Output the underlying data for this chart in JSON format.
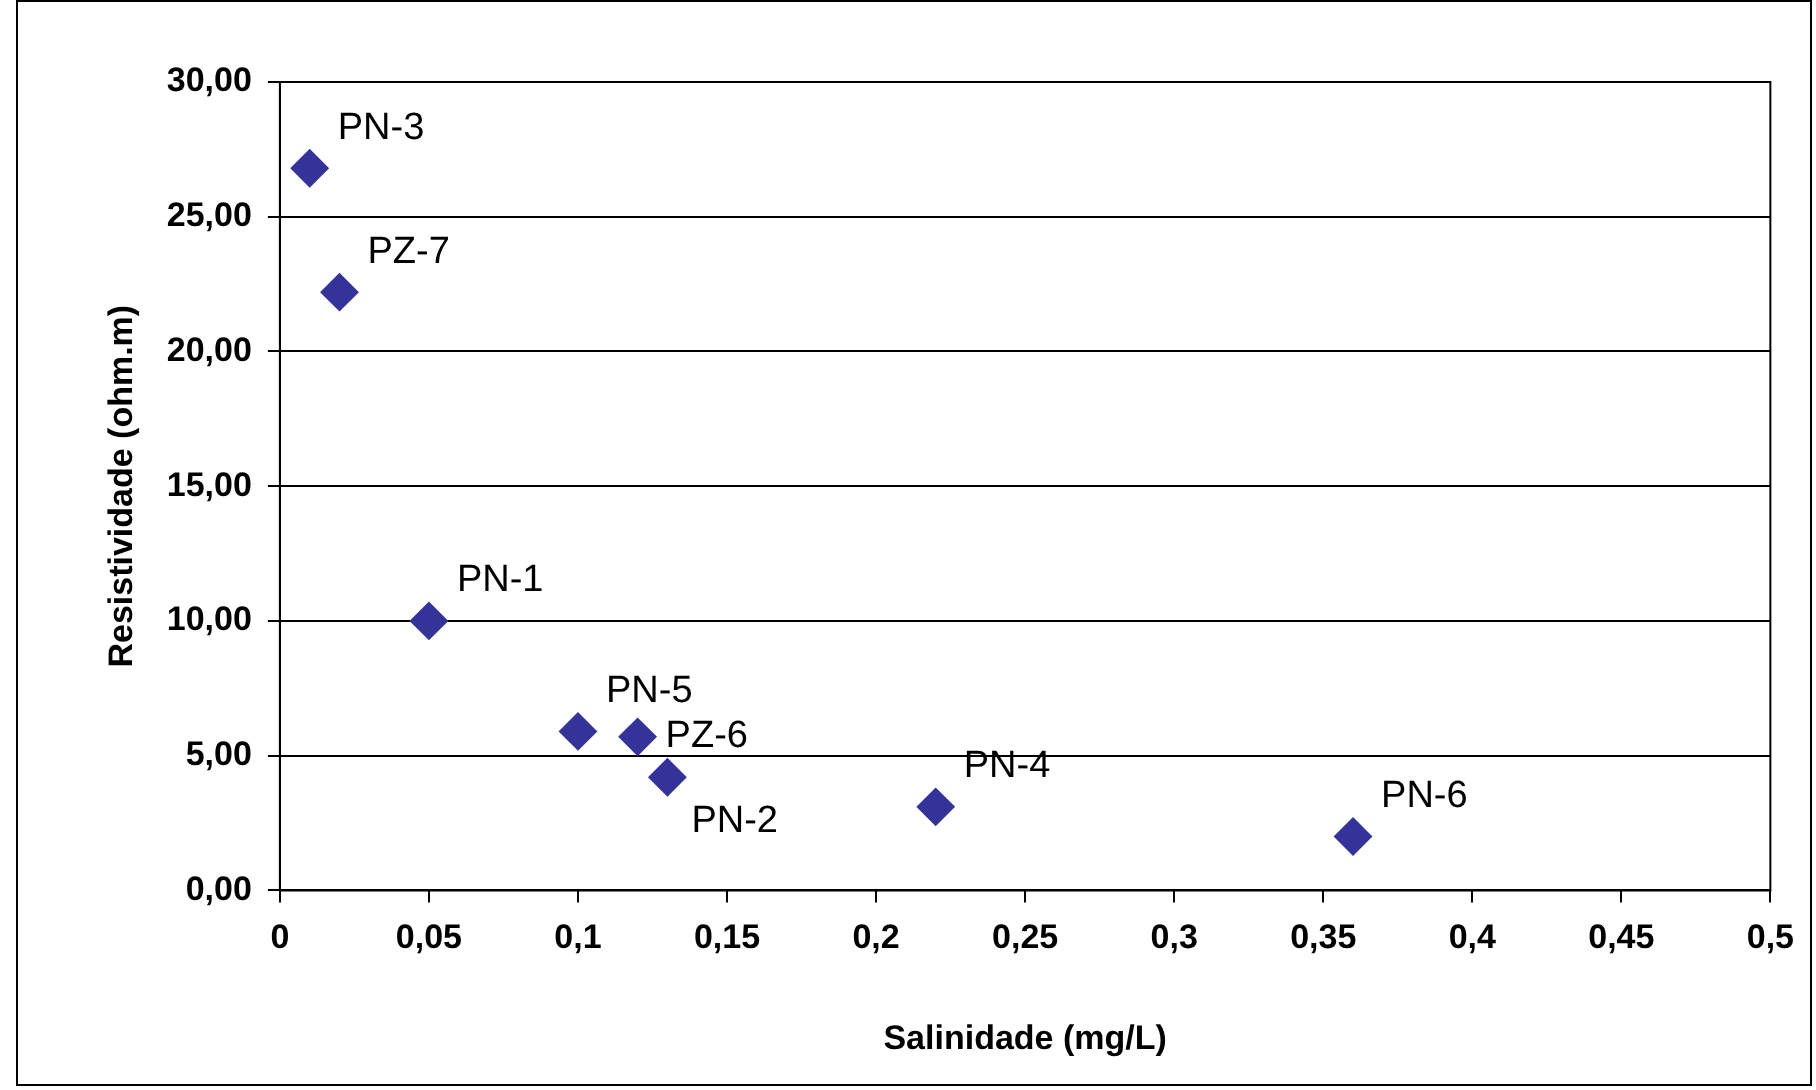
{
  "chart_data": {
    "type": "scatter",
    "xlabel": "Salinidade (mg/L)",
    "ylabel": "Resistividade (ohm.m)",
    "series": [
      {
        "color": "#333399",
        "x": [
          0.01,
          0.02,
          0.05,
          0.1,
          0.12,
          0.13,
          0.22,
          0.36
        ],
        "values": [
          26.8,
          22.2,
          10,
          5.9,
          5.7,
          4.2,
          3.1,
          2.0
        ]
      }
    ],
    "annotations": [
      {
        "text": "PN-3",
        "x": 0.01,
        "y": 26.8
      },
      {
        "text": "PZ-7",
        "x": 0.02,
        "y": 22.2
      },
      {
        "text": "PN-1",
        "x": 0.05,
        "y": 10
      },
      {
        "text": "PN-5",
        "x": 0.1,
        "y": 5.9
      },
      {
        "text": "PZ-6",
        "x": 0.12,
        "y": 5.7
      },
      {
        "text": "PN-2",
        "x": 0.13,
        "y": 4.2
      },
      {
        "text": "PN-4",
        "x": 0.22,
        "y": 3.1
      },
      {
        "text": "PN-6",
        "x": 0.36,
        "y": 2.0
      }
    ],
    "xlim": [
      0,
      0.5
    ],
    "xticks": [
      {
        "value": 0,
        "label": "0"
      },
      {
        "value": 0.05,
        "label": "0,05"
      },
      {
        "value": 0.1,
        "label": "0,1"
      },
      {
        "value": 0.15,
        "label": "0,15"
      },
      {
        "value": 0.2,
        "label": "0,2"
      },
      {
        "value": 0.25,
        "label": "0,25"
      },
      {
        "value": 0.3,
        "label": "0,3"
      },
      {
        "value": 0.35,
        "label": "0,35"
      },
      {
        "value": 0.4,
        "label": "0,4"
      },
      {
        "value": 0.45,
        "label": "0,45"
      },
      {
        "value": 0.5,
        "label": "0,5"
      }
    ],
    "ylim": [
      0,
      30
    ],
    "yticks": [
      {
        "value": 0,
        "label": "0,00"
      },
      {
        "value": 5,
        "label": "5,00"
      },
      {
        "value": 10,
        "label": "10,00"
      },
      {
        "value": 15,
        "label": "15,00"
      },
      {
        "value": 20,
        "label": "20,00"
      },
      {
        "value": 25,
        "label": "25,00"
      },
      {
        "value": 30,
        "label": "30,00"
      }
    ],
    "grid": "y",
    "marker": "diamond",
    "legend": false
  }
}
